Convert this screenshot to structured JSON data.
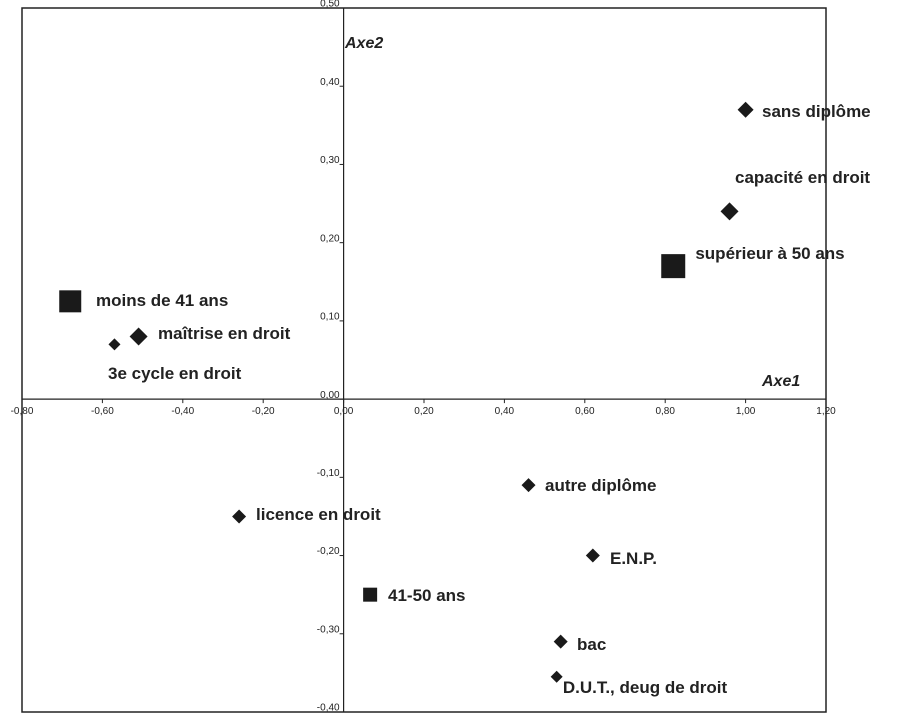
{
  "chart_data": {
    "type": "scatter",
    "x_label": "Axe1",
    "y_label": "Axe2",
    "xlim": [
      -0.8,
      1.2
    ],
    "ylim": [
      -0.4,
      0.5
    ],
    "xticks": [
      {
        "value": -0.8,
        "label": "-0,80"
      },
      {
        "value": -0.6,
        "label": "-0,60"
      },
      {
        "value": -0.4,
        "label": "-0,40"
      },
      {
        "value": -0.2,
        "label": "-0,20"
      },
      {
        "value": 0,
        "label": "0,00"
      },
      {
        "value": 0.2,
        "label": "0,20"
      },
      {
        "value": 0.4,
        "label": "0,40"
      },
      {
        "value": 0.6,
        "label": "0,60"
      },
      {
        "value": 0.8,
        "label": "0,80"
      },
      {
        "value": 1,
        "label": "1,00"
      },
      {
        "value": 1.2,
        "label": "1,20"
      }
    ],
    "yticks": [
      {
        "value": 0.5,
        "label": "0,50"
      },
      {
        "value": 0.4,
        "label": "0,40"
      },
      {
        "value": 0.3,
        "label": "0,30"
      },
      {
        "value": 0.2,
        "label": "0,20"
      },
      {
        "value": 0.1,
        "label": "0,10"
      },
      {
        "value": 0,
        "label": "0,00"
      },
      {
        "value": -0.1,
        "label": "-0,10"
      },
      {
        "value": -0.2,
        "label": "-0,20"
      },
      {
        "value": -0.3,
        "label": "-0,30"
      },
      {
        "value": -0.4,
        "label": "-0,40"
      }
    ],
    "color": "#1a1a1a",
    "points": [
      {
        "label": "sans diplôme",
        "x": 1.0,
        "y": 0.37,
        "marker": "diamond"
      },
      {
        "label": "capacité en droit",
        "x": 0.96,
        "y": 0.24,
        "marker": "diamond"
      },
      {
        "label": "supérieur à 50 ans",
        "x": 0.82,
        "y": 0.17,
        "marker": "square"
      },
      {
        "label": "moins de 41 ans",
        "x": -0.68,
        "y": 0.125,
        "marker": "square"
      },
      {
        "label": "maîtrise en droit",
        "x": -0.51,
        "y": 0.08,
        "marker": "diamond"
      },
      {
        "label": "3e cycle en droit",
        "x": -0.57,
        "y": 0.07,
        "marker": "diamond"
      },
      {
        "label": "licence en droit",
        "x": -0.26,
        "y": -0.15,
        "marker": "diamond"
      },
      {
        "label": "autre diplôme",
        "x": 0.46,
        "y": -0.11,
        "marker": "diamond"
      },
      {
        "label": "E.N.P.",
        "x": 0.62,
        "y": -0.2,
        "marker": "diamond"
      },
      {
        "label": "41-50 ans",
        "x": 0.066,
        "y": -0.25,
        "marker": "square"
      },
      {
        "label": "bac",
        "x": 0.54,
        "y": -0.31,
        "marker": "diamond"
      },
      {
        "label": "D.U.T., deug de droit",
        "x": 0.53,
        "y": -0.355,
        "marker": "diamond"
      }
    ]
  }
}
